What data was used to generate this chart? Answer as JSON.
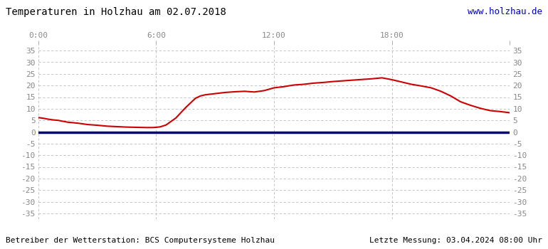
{
  "title": "Temperaturen in Holzhau am 02.07.2018",
  "url_text": "www.holzhau.de",
  "bottom_left": "Betreiber der Wetterstation: BCS Computersysteme Holzhau",
  "bottom_right": "Letzte Messung: 03.04.2024 08:00 Uhr",
  "x_ticks": [
    0,
    6,
    12,
    18,
    24
  ],
  "x_tick_labels": [
    "0:00",
    "6:00",
    "12:00",
    "18:00",
    ""
  ],
  "y_ticks": [
    -35,
    -30,
    -25,
    -20,
    -15,
    -10,
    -5,
    0,
    5,
    10,
    15,
    20,
    25,
    30,
    35
  ],
  "ylim": [
    -37.5,
    37.5
  ],
  "xlim": [
    0,
    24
  ],
  "line_color": "#cc0000",
  "zero_line_color": "#000080",
  "grid_color": "#bbbbbb",
  "bg_color": "#ffffff",
  "title_color": "#000000",
  "url_color": "#0000cc",
  "footer_color": "#000000",
  "temperature_x": [
    0.0,
    0.25,
    0.5,
    0.75,
    1.0,
    1.5,
    2.0,
    2.5,
    3.0,
    3.5,
    4.0,
    4.5,
    5.0,
    5.5,
    5.8,
    6.0,
    6.2,
    6.5,
    7.0,
    7.5,
    8.0,
    8.25,
    8.5,
    9.0,
    9.5,
    10.0,
    10.5,
    11.0,
    11.5,
    12.0,
    12.5,
    13.0,
    13.5,
    14.0,
    14.5,
    15.0,
    15.5,
    16.0,
    16.5,
    17.0,
    17.25,
    17.5,
    18.0,
    18.5,
    19.0,
    19.5,
    20.0,
    20.5,
    21.0,
    21.5,
    22.0,
    22.5,
    23.0,
    23.5,
    24.0
  ],
  "temperature_y": [
    6.2,
    5.9,
    5.5,
    5.2,
    5.0,
    4.2,
    3.8,
    3.2,
    2.9,
    2.5,
    2.3,
    2.1,
    2.0,
    1.9,
    1.9,
    2.0,
    2.2,
    3.0,
    6.0,
    10.5,
    14.5,
    15.5,
    16.0,
    16.5,
    17.0,
    17.3,
    17.5,
    17.2,
    17.8,
    19.0,
    19.5,
    20.2,
    20.5,
    21.0,
    21.3,
    21.7,
    22.0,
    22.3,
    22.6,
    22.9,
    23.1,
    23.3,
    22.5,
    21.5,
    20.5,
    19.8,
    19.0,
    17.5,
    15.5,
    13.0,
    11.5,
    10.2,
    9.2,
    8.8,
    8.3
  ]
}
